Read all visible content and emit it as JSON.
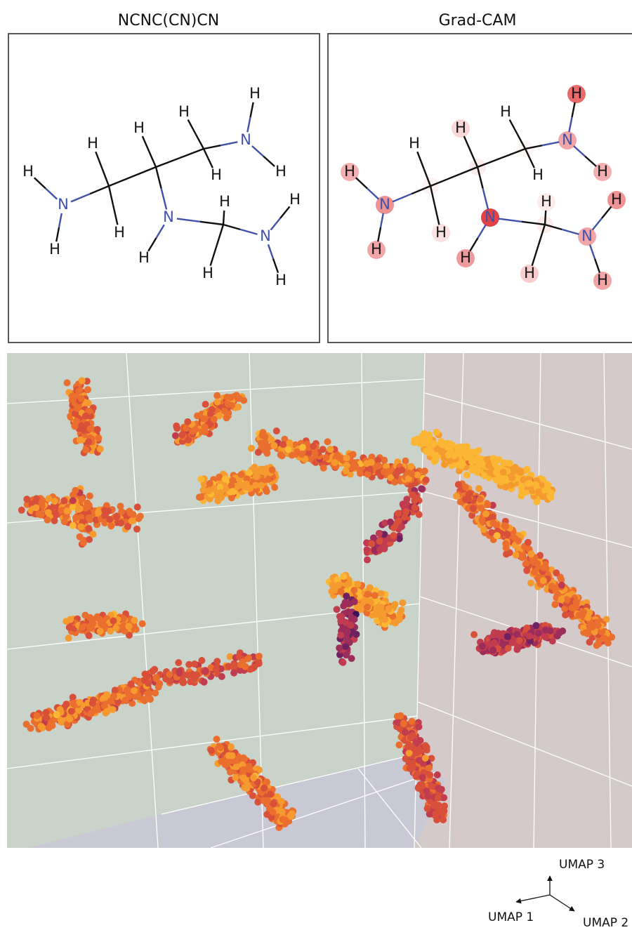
{
  "panels": [
    {
      "title": "NCNC(CN)CN"
    },
    {
      "title": "Grad-CAM"
    }
  ],
  "molecule": {
    "atoms": [
      "N",
      "H",
      "H",
      "H",
      "H",
      "H",
      "N",
      "H",
      "H",
      "H",
      "N",
      "H",
      "H",
      "H",
      "H",
      "N",
      "H",
      "H"
    ]
  },
  "axes": {
    "z": "UMAP 3",
    "x": "UMAP 1",
    "y": "UMAP 2"
  }
}
